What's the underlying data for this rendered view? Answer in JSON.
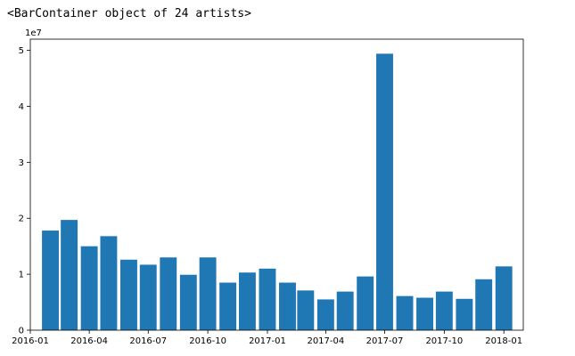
{
  "output": {
    "repr": "<BarContainer object of 24 artists>"
  },
  "colors": {
    "bar": "#1f77b4",
    "axis": "#000000",
    "background": "#ffffff"
  },
  "chart_data": {
    "type": "bar",
    "title": "",
    "xlabel": "",
    "ylabel": "",
    "y_offset_label": "1e7",
    "grid": false,
    "x_is_date": true,
    "x": [
      "2016-02-01",
      "2016-03-01",
      "2016-04-01",
      "2016-05-01",
      "2016-06-01",
      "2016-07-01",
      "2016-08-01",
      "2016-09-01",
      "2016-10-01",
      "2016-11-01",
      "2016-12-01",
      "2017-01-01",
      "2017-02-01",
      "2017-03-01",
      "2017-04-01",
      "2017-05-01",
      "2017-06-01",
      "2017-07-01",
      "2017-08-01",
      "2017-09-01",
      "2017-10-01",
      "2017-11-01",
      "2017-12-01",
      "2018-01-01"
    ],
    "values": [
      17800000,
      19700000,
      15000000,
      16800000,
      12600000,
      11700000,
      13000000,
      9900000,
      13000000,
      8500000,
      10300000,
      11000000,
      8500000,
      7100000,
      5500000,
      6900000,
      9600000,
      49400000,
      6100000,
      5800000,
      6900000,
      5600000,
      9100000,
      11400000
    ],
    "bar_width_days": 26,
    "xlim": [
      "2016-01-01",
      "2018-01-31"
    ],
    "ylim": [
      0,
      52000000
    ],
    "xticks": [
      "2016-01-01",
      "2016-04-01",
      "2016-07-01",
      "2016-10-01",
      "2017-01-01",
      "2017-04-01",
      "2017-07-01",
      "2017-10-01",
      "2018-01-01"
    ],
    "xtick_labels": [
      "2016-01",
      "2016-04",
      "2016-07",
      "2016-10",
      "2017-01",
      "2017-04",
      "2017-07",
      "2017-10",
      "2018-01"
    ],
    "yticks": [
      0,
      10000000,
      20000000,
      30000000,
      40000000,
      50000000
    ],
    "ytick_labels": [
      "0",
      "1",
      "2",
      "3",
      "4",
      "5"
    ]
  }
}
